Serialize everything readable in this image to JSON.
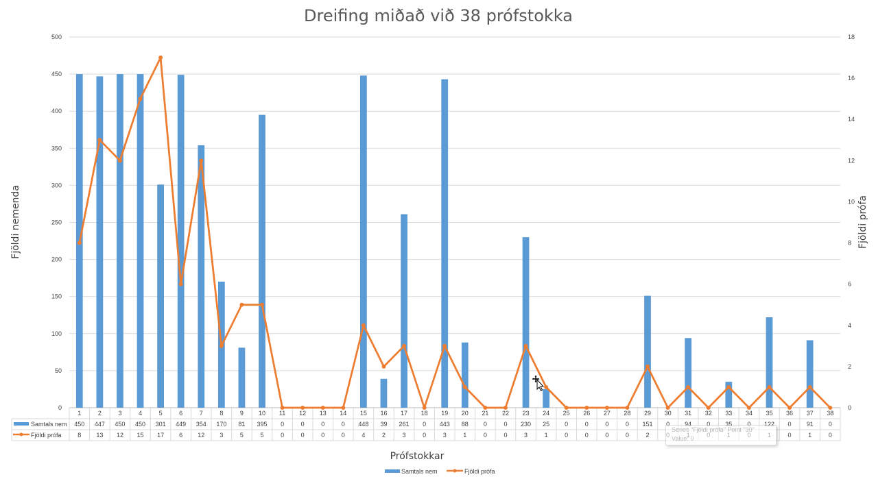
{
  "chart_data": {
    "type": "bar+line",
    "title": "Dreifing miðað við 38 prófstokka",
    "xlabel": "Prófstokkar",
    "ylabel_left": "Fjöldi nemenda",
    "ylabel_right": "Fjöldi prófa",
    "categories": [
      "1",
      "2",
      "3",
      "4",
      "5",
      "6",
      "7",
      "8",
      "9",
      "10",
      "11",
      "12",
      "13",
      "14",
      "15",
      "16",
      "17",
      "18",
      "19",
      "20",
      "21",
      "22",
      "23",
      "24",
      "25",
      "26",
      "27",
      "28",
      "29",
      "30",
      "31",
      "32",
      "33",
      "34",
      "35",
      "36",
      "37",
      "38"
    ],
    "left_ticks": [
      "0",
      "50",
      "100",
      "150",
      "200",
      "250",
      "300",
      "350",
      "400",
      "450",
      "500"
    ],
    "right_ticks": [
      "0",
      "2",
      "4",
      "6",
      "8",
      "10",
      "12",
      "14",
      "16",
      "18"
    ],
    "ylim_left": [
      0,
      500
    ],
    "ylim_right": [
      0,
      18
    ],
    "grid": true,
    "legend_position": "bottom",
    "data_table": true,
    "series": [
      {
        "name": "Samtals nem",
        "type": "bar",
        "axis": "left",
        "color": "#5B9BD5",
        "values": [
          450,
          447,
          450,
          450,
          301,
          449,
          354,
          170,
          81,
          395,
          0,
          0,
          0,
          0,
          448,
          39,
          261,
          0,
          443,
          88,
          0,
          0,
          230,
          25,
          0,
          0,
          0,
          0,
          151,
          0,
          94,
          0,
          35,
          0,
          122,
          0,
          91,
          0
        ]
      },
      {
        "name": "Fjöldi prófa",
        "type": "line",
        "axis": "right",
        "color": "#ED7D31",
        "values": [
          8,
          13,
          12,
          15,
          17,
          6,
          12,
          3,
          5,
          5,
          0,
          0,
          0,
          0,
          4,
          2,
          3,
          0,
          3,
          1,
          0,
          0,
          3,
          1,
          0,
          0,
          0,
          0,
          2,
          0,
          1,
          0,
          1,
          0,
          1,
          0,
          1,
          0
        ]
      }
    ]
  },
  "tooltip": {
    "line1": "Series \"Fjöldi prófa\" Point \"30\"",
    "line2": "Value: 0"
  }
}
